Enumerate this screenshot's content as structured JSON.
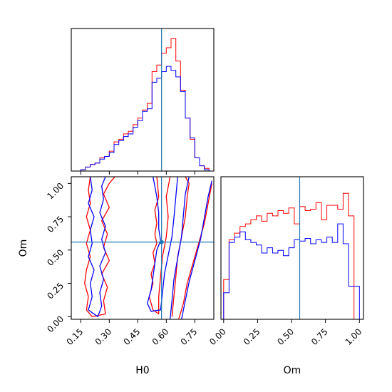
{
  "chart_data": [
    {
      "panel": "H0 marginal histogram",
      "type": "histogram",
      "xlim": [
        0.1,
        0.85
      ],
      "truth": 0.575,
      "bin_edges": [
        0.15,
        0.175,
        0.2,
        0.225,
        0.25,
        0.275,
        0.3,
        0.325,
        0.35,
        0.375,
        0.4,
        0.425,
        0.45,
        0.475,
        0.5,
        0.525,
        0.55,
        0.575,
        0.6,
        0.625,
        0.65,
        0.675,
        0.7,
        0.725,
        0.75,
        0.775,
        0.8,
        0.825
      ],
      "series": [
        {
          "color": "#ff0000",
          "values": [
            0.01,
            0.03,
            0.05,
            0.06,
            0.1,
            0.11,
            0.15,
            0.22,
            0.24,
            0.28,
            0.3,
            0.35,
            0.4,
            0.46,
            0.51,
            0.75,
            0.8,
            0.89,
            0.93,
            1.0,
            0.83,
            0.61,
            0.4,
            0.24,
            0.1,
            0.04,
            0.02
          ]
        },
        {
          "color": "#0000ff",
          "values": [
            0.01,
            0.03,
            0.05,
            0.06,
            0.09,
            0.11,
            0.14,
            0.2,
            0.23,
            0.26,
            0.28,
            0.33,
            0.38,
            0.45,
            0.47,
            0.67,
            0.7,
            0.75,
            0.79,
            0.76,
            0.71,
            0.6,
            0.4,
            0.25,
            0.1,
            0.04,
            0.01
          ]
        }
      ]
    },
    {
      "panel": "H0 vs Om contours",
      "type": "contour",
      "xlabel": "H0",
      "ylabel": "Om",
      "xlim": [
        0.1,
        0.85
      ],
      "ylim": [
        -0.02,
        1.05
      ],
      "xticks": [
        "0.15",
        "0.30",
        "0.45",
        "0.60",
        "0.75"
      ],
      "xtick_values": [
        0.15,
        0.3,
        0.45,
        0.6,
        0.75
      ],
      "yticks": [
        "0.00",
        "0.25",
        "0.50",
        "0.75",
        "1.00"
      ],
      "ytick_values": [
        0.0,
        0.25,
        0.5,
        0.75,
        1.0
      ],
      "truth": {
        "x": 0.575,
        "y": 0.56
      },
      "red_contours": [
        [
          [
            0.2,
            1.05
          ],
          [
            0.19,
            0.95
          ],
          [
            0.2,
            0.85
          ],
          [
            0.18,
            0.75
          ],
          [
            0.2,
            0.65
          ],
          [
            0.18,
            0.55
          ],
          [
            0.2,
            0.45
          ],
          [
            0.18,
            0.35
          ],
          [
            0.17,
            0.25
          ],
          [
            0.19,
            0.15
          ],
          [
            0.18,
            0.05
          ],
          [
            0.21,
            0.0
          ],
          [
            0.28,
            0.02
          ],
          [
            0.27,
            0.12
          ],
          [
            0.29,
            0.22
          ],
          [
            0.26,
            0.32
          ],
          [
            0.3,
            0.42
          ],
          [
            0.27,
            0.52
          ],
          [
            0.29,
            0.62
          ],
          [
            0.26,
            0.72
          ],
          [
            0.3,
            0.82
          ],
          [
            0.27,
            0.92
          ],
          [
            0.3,
            1.0
          ],
          [
            0.33,
            1.05
          ]
        ],
        [
          [
            0.55,
            1.05
          ],
          [
            0.56,
            0.9
          ],
          [
            0.54,
            0.8
          ],
          [
            0.55,
            0.7
          ],
          [
            0.54,
            0.62
          ],
          [
            0.55,
            0.55
          ],
          [
            0.53,
            0.48
          ],
          [
            0.54,
            0.4
          ],
          [
            0.52,
            0.32
          ],
          [
            0.53,
            0.25
          ],
          [
            0.51,
            0.15
          ],
          [
            0.53,
            0.05
          ],
          [
            0.56,
            0.02
          ],
          [
            0.56,
            0.15
          ],
          [
            0.57,
            0.3
          ],
          [
            0.58,
            0.45
          ],
          [
            0.6,
            0.6
          ],
          [
            0.61,
            0.75
          ],
          [
            0.6,
            0.9
          ],
          [
            0.62,
            1.05
          ]
        ],
        [
          [
            0.63,
            0.0
          ],
          [
            0.64,
            0.15
          ],
          [
            0.65,
            0.3
          ],
          [
            0.66,
            0.45
          ],
          [
            0.68,
            0.6
          ],
          [
            0.7,
            0.75
          ],
          [
            0.71,
            0.9
          ],
          [
            0.72,
            1.0
          ],
          [
            0.7,
            1.05
          ]
        ],
        [
          [
            0.665,
            -0.02
          ],
          [
            0.69,
            0.1
          ],
          [
            0.71,
            0.25
          ],
          [
            0.74,
            0.4
          ],
          [
            0.77,
            0.55
          ],
          [
            0.8,
            0.7
          ],
          [
            0.82,
            0.85
          ],
          [
            0.84,
            1.0
          ]
        ]
      ],
      "blue_contours": [
        [
          [
            0.2,
            1.05
          ],
          [
            0.21,
            0.95
          ],
          [
            0.19,
            0.85
          ],
          [
            0.22,
            0.75
          ],
          [
            0.2,
            0.65
          ],
          [
            0.21,
            0.55
          ],
          [
            0.19,
            0.45
          ],
          [
            0.22,
            0.35
          ],
          [
            0.2,
            0.25
          ],
          [
            0.21,
            0.15
          ],
          [
            0.19,
            0.05
          ],
          [
            0.24,
            0.0
          ],
          [
            0.26,
            0.08
          ],
          [
            0.25,
            0.18
          ],
          [
            0.27,
            0.28
          ],
          [
            0.25,
            0.38
          ],
          [
            0.28,
            0.48
          ],
          [
            0.26,
            0.58
          ],
          [
            0.28,
            0.68
          ],
          [
            0.25,
            0.78
          ],
          [
            0.27,
            0.88
          ],
          [
            0.26,
            0.98
          ],
          [
            0.28,
            1.05
          ]
        ],
        [
          [
            0.53,
            1.05
          ],
          [
            0.55,
            0.9
          ],
          [
            0.56,
            0.78
          ],
          [
            0.56,
            0.66
          ],
          [
            0.57,
            0.57
          ],
          [
            0.55,
            0.5
          ],
          [
            0.54,
            0.4
          ],
          [
            0.53,
            0.3
          ],
          [
            0.52,
            0.2
          ],
          [
            0.5,
            0.1
          ],
          [
            0.52,
            0.04
          ],
          [
            0.57,
            0.05
          ],
          [
            0.58,
            0.18
          ],
          [
            0.59,
            0.32
          ],
          [
            0.61,
            0.46
          ],
          [
            0.63,
            0.6
          ],
          [
            0.64,
            0.74
          ],
          [
            0.65,
            0.9
          ],
          [
            0.66,
            1.05
          ]
        ],
        [
          [
            0.62,
            -0.02
          ],
          [
            0.63,
            0.12
          ],
          [
            0.64,
            0.28
          ],
          [
            0.66,
            0.44
          ],
          [
            0.68,
            0.6
          ],
          [
            0.69,
            0.76
          ],
          [
            0.7,
            0.92
          ],
          [
            0.72,
            1.05
          ]
        ],
        [
          [
            0.68,
            -0.02
          ],
          [
            0.7,
            0.12
          ],
          [
            0.72,
            0.26
          ],
          [
            0.75,
            0.42
          ],
          [
            0.78,
            0.58
          ],
          [
            0.8,
            0.74
          ],
          [
            0.82,
            0.9
          ],
          [
            0.84,
            1.02
          ]
        ]
      ]
    },
    {
      "panel": "Om marginal histogram",
      "type": "histogram",
      "xlabel": "Om",
      "xlim": [
        -0.02,
        1.03
      ],
      "xticks": [
        "0.00",
        "0.25",
        "0.50",
        "0.75",
        "1.00"
      ],
      "xtick_values": [
        0.0,
        0.25,
        0.5,
        0.75,
        1.0
      ],
      "truth": 0.56,
      "bin_edges": [
        0.0,
        0.04,
        0.08,
        0.12,
        0.16,
        0.2,
        0.24,
        0.28,
        0.32,
        0.36,
        0.4,
        0.44,
        0.48,
        0.52,
        0.56,
        0.6,
        0.64,
        0.68,
        0.72,
        0.76,
        0.8,
        0.84,
        0.88,
        0.92,
        0.96,
        1.0
      ],
      "series": [
        {
          "color": "#ff0000",
          "values": [
            0.3,
            0.6,
            0.65,
            0.7,
            0.72,
            0.75,
            0.78,
            0.74,
            0.8,
            0.78,
            0.82,
            0.8,
            0.84,
            0.72,
            0.85,
            0.82,
            0.83,
            0.88,
            0.75,
            0.86,
            0.86,
            0.83,
            0.95,
            0.78,
            0.0
          ]
        },
        {
          "color": "#0000ff",
          "values": [
            0.2,
            0.58,
            0.62,
            0.66,
            0.6,
            0.58,
            0.56,
            0.5,
            0.54,
            0.5,
            0.52,
            0.48,
            0.54,
            0.6,
            0.59,
            0.61,
            0.57,
            0.6,
            0.58,
            0.62,
            0.58,
            0.72,
            0.57,
            0.25,
            0.25
          ]
        }
      ]
    }
  ]
}
